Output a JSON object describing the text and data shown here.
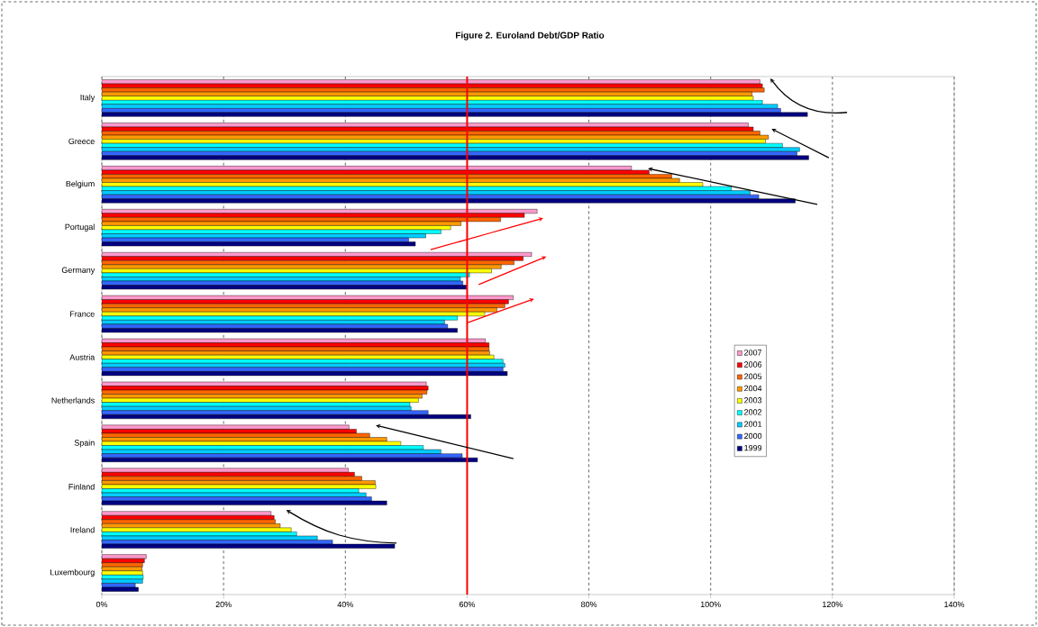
{
  "chart_data": {
    "type": "bar",
    "orientation": "horizontal",
    "title": "Figure 2. Euroland Debt/GDP Ratio",
    "categories": [
      "Italy",
      "Greece",
      "Belgium",
      "Portugal",
      "Germany",
      "France",
      "Austria",
      "Netherlands",
      "Spain",
      "Finland",
      "Ireland",
      "Luxembourg"
    ],
    "series": [
      {
        "name": "2007",
        "color": "#ff99cc",
        "values": [
          108.1,
          106.2,
          87.0,
          71.5,
          70.6,
          67.6,
          63.0,
          53.3,
          40.6,
          40.5,
          27.8,
          7.3
        ]
      },
      {
        "name": "2006",
        "color": "#ff0000",
        "values": [
          108.5,
          107.0,
          89.9,
          69.4,
          69.2,
          66.8,
          63.6,
          53.6,
          41.8,
          41.5,
          28.3,
          7.0
        ]
      },
      {
        "name": "2005",
        "color": "#ff6600",
        "values": [
          108.8,
          108.1,
          93.6,
          65.5,
          67.7,
          66.2,
          63.6,
          53.4,
          44.0,
          42.7,
          28.5,
          6.7
        ]
      },
      {
        "name": "2004",
        "color": "#ff9900",
        "values": [
          106.8,
          109.5,
          94.9,
          59.0,
          65.6,
          64.9,
          63.7,
          52.6,
          46.8,
          44.9,
          29.3,
          6.6
        ]
      },
      {
        "name": "2003",
        "color": "#ffff00",
        "values": [
          107.0,
          109.0,
          98.7,
          57.3,
          64.0,
          62.9,
          64.4,
          52.0,
          49.1,
          45.0,
          31.1,
          6.7
        ]
      },
      {
        "name": "2002",
        "color": "#00ffff",
        "values": [
          108.5,
          111.8,
          103.4,
          55.7,
          60.4,
          58.4,
          65.9,
          50.6,
          52.8,
          42.2,
          32.0,
          6.8
        ]
      },
      {
        "name": "2001",
        "color": "#00ccff",
        "values": [
          111.0,
          114.6,
          106.5,
          53.2,
          58.9,
          56.3,
          66.2,
          50.8,
          55.7,
          43.4,
          35.4,
          6.7
        ]
      },
      {
        "name": "2000",
        "color": "#3366ff",
        "values": [
          111.5,
          114.2,
          107.9,
          50.4,
          59.3,
          56.8,
          65.9,
          53.6,
          59.2,
          44.3,
          37.9,
          5.5
        ]
      },
      {
        "name": "1999",
        "color": "#000080",
        "values": [
          115.9,
          116.1,
          113.9,
          51.5,
          59.9,
          58.4,
          66.6,
          60.6,
          61.7,
          46.8,
          48.1,
          6.0
        ]
      }
    ],
    "xlim": [
      0,
      140
    ],
    "xticks": [
      {
        "value": 0,
        "label": "0%"
      },
      {
        "value": 20,
        "label": "20%"
      },
      {
        "value": 40,
        "label": "40%"
      },
      {
        "value": 60,
        "label": "60%"
      },
      {
        "value": 80,
        "label": "80%"
      },
      {
        "value": 100,
        "label": "100%"
      },
      {
        "value": 120,
        "label": "120%"
      },
      {
        "value": 140,
        "label": "140%"
      }
    ],
    "grid": "x",
    "legend": "right",
    "ref_lines": [
      {
        "axis": "x",
        "value": 60,
        "color": "#ff0000"
      }
    ]
  }
}
